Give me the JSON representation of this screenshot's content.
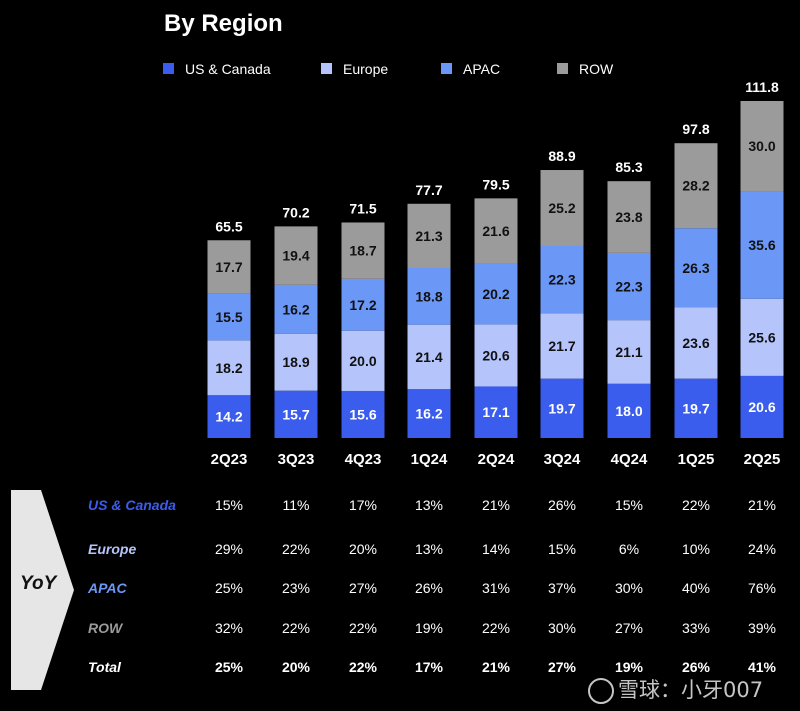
{
  "page": {
    "title": "By Region"
  },
  "chart_data": {
    "type": "bar",
    "stacked": true,
    "categories": [
      "2Q23",
      "3Q23",
      "4Q23",
      "1Q24",
      "2Q24",
      "3Q24",
      "4Q24",
      "1Q25",
      "2Q25"
    ],
    "series": [
      {
        "name": "US & Canada",
        "color": "#3a5ded",
        "values": [
          14.2,
          15.7,
          15.6,
          16.2,
          17.1,
          19.7,
          18.0,
          19.7,
          20.6
        ]
      },
      {
        "name": "Europe",
        "color": "#b5c5fb",
        "values": [
          18.2,
          18.9,
          20.0,
          21.4,
          20.6,
          21.7,
          21.1,
          23.6,
          25.6
        ]
      },
      {
        "name": "APAC",
        "color": "#6b98f7",
        "values": [
          15.5,
          16.2,
          17.2,
          18.8,
          20.2,
          22.3,
          22.3,
          26.3,
          35.6
        ]
      },
      {
        "name": "ROW",
        "color": "#9b9b9b",
        "values": [
          17.7,
          19.4,
          18.7,
          21.3,
          21.6,
          25.2,
          23.8,
          28.2,
          30.0
        ]
      }
    ],
    "totals": [
      65.5,
      70.2,
      71.5,
      77.7,
      79.5,
      88.9,
      85.3,
      97.8,
      111.8
    ],
    "ylim": [
      0,
      111.8
    ],
    "grid": false,
    "legend": "top"
  },
  "yoy": {
    "label": "YoY",
    "rows": [
      {
        "label": "US & Canada",
        "color": "#3a5ded",
        "total": false,
        "values": [
          "15%",
          "11%",
          "17%",
          "13%",
          "21%",
          "26%",
          "15%",
          "22%",
          "21%"
        ]
      },
      {
        "label": "Europe",
        "color": "#b5c5fb",
        "total": false,
        "values": [
          "29%",
          "22%",
          "20%",
          "13%",
          "14%",
          "15%",
          "6%",
          "10%",
          "24%"
        ]
      },
      {
        "label": "APAC",
        "color": "#6b98f7",
        "total": false,
        "values": [
          "25%",
          "23%",
          "27%",
          "26%",
          "31%",
          "37%",
          "30%",
          "40%",
          "76%"
        ]
      },
      {
        "label": "ROW",
        "color": "#9b9b9b",
        "total": false,
        "values": [
          "32%",
          "22%",
          "22%",
          "19%",
          "22%",
          "30%",
          "27%",
          "33%",
          "39%"
        ]
      },
      {
        "label": "Total",
        "color": "#ffffff",
        "total": true,
        "values": [
          "25%",
          "20%",
          "22%",
          "17%",
          "21%",
          "27%",
          "19%",
          "26%",
          "41%"
        ]
      }
    ]
  },
  "watermark": {
    "text": "雪球：小牙007"
  }
}
